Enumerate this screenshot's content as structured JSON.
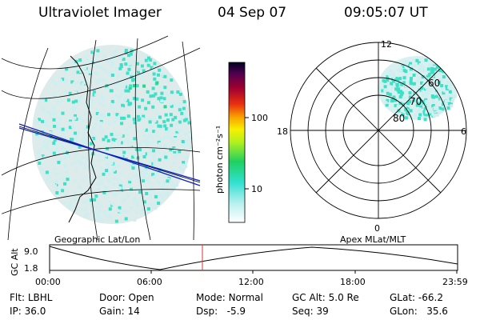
{
  "header": {
    "instrument": "Ultraviolet Imager",
    "date": "04 Sep 07",
    "time": "09:05:07 UT"
  },
  "geo_panel": {
    "caption": "Geographic Lat/Lon"
  },
  "colorbar": {
    "unit_label": "photon cm⁻²s⁻¹",
    "ticks": [
      "100",
      "10"
    ]
  },
  "polar_panel": {
    "caption": "Apex MLat/MLT",
    "mlt_labels": {
      "top": "12",
      "left": "18",
      "right": "6",
      "bottom": "0"
    },
    "lat_labels": [
      "60",
      "70",
      "80"
    ]
  },
  "altitude_plot": {
    "ylabel": "GC Alt",
    "yticks": [
      "9.0",
      "1.8"
    ],
    "xticks": [
      "00:00",
      "06:00",
      "12:00",
      "18:00",
      "23:59"
    ]
  },
  "footer": {
    "row1": [
      {
        "key": "Flt:",
        "val": "LBHL"
      },
      {
        "key": "Door:",
        "val": "Open"
      },
      {
        "key": "Mode:",
        "val": "Normal"
      },
      {
        "key": "GC Alt:",
        "val": "5.0 Re"
      },
      {
        "key": "GLat:",
        "val": "-66.2"
      }
    ],
    "row2": [
      {
        "key": "IP:",
        "val": "36.0"
      },
      {
        "key": "Gain:",
        "val": "14"
      },
      {
        "key": "Dsp:",
        "val": "-5.9"
      },
      {
        "key": "Seq:",
        "val": "39"
      },
      {
        "key": "GLon:",
        "val": "35.6"
      }
    ]
  },
  "colors": {
    "aurora_low": "#cfeef0",
    "aurora_mid": "#3fe0c8",
    "aurora_high": "#29d68a",
    "track_blue": "#1020c0",
    "marker_red": "#e03030"
  }
}
